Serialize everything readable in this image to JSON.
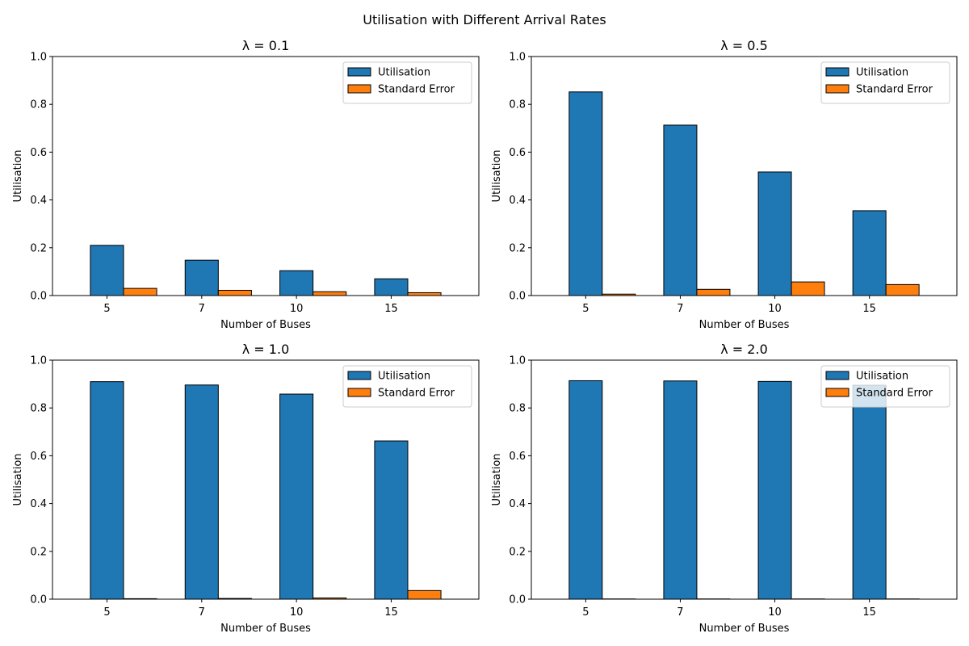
{
  "figure": {
    "suptitle": "Utilisation with Different Arrival Rates"
  },
  "colors": {
    "utilisation": "#1f77b4",
    "standard_error": "#ff7f0e",
    "edge": "#000000"
  },
  "chart_data": [
    {
      "type": "bar",
      "title": "λ = 0.1",
      "xlabel": "Number of Buses",
      "ylabel": "Utilisation",
      "ylim": [
        0,
        1
      ],
      "yticks": [
        "0.0",
        "0.2",
        "0.4",
        "0.6",
        "0.8",
        "1.0"
      ],
      "categories": [
        "5",
        "7",
        "10",
        "15"
      ],
      "legend_position": "upper right",
      "series": [
        {
          "name": "Utilisation",
          "values": [
            0.21,
            0.148,
            0.104,
            0.07
          ]
        },
        {
          "name": "Standard Error",
          "values": [
            0.03,
            0.022,
            0.016,
            0.012
          ]
        }
      ]
    },
    {
      "type": "bar",
      "title": "λ = 0.5",
      "xlabel": "Number of Buses",
      "ylabel": "Utilisation",
      "ylim": [
        0,
        1
      ],
      "yticks": [
        "0.0",
        "0.2",
        "0.4",
        "0.6",
        "0.8",
        "1.0"
      ],
      "categories": [
        "5",
        "7",
        "10",
        "15"
      ],
      "legend_position": "upper right",
      "series": [
        {
          "name": "Utilisation",
          "values": [
            0.852,
            0.713,
            0.517,
            0.355
          ]
        },
        {
          "name": "Standard Error",
          "values": [
            0.006,
            0.026,
            0.057,
            0.046
          ]
        }
      ]
    },
    {
      "type": "bar",
      "title": "λ = 1.0",
      "xlabel": "Number of Buses",
      "ylabel": "Utilisation",
      "ylim": [
        0,
        1
      ],
      "yticks": [
        "0.0",
        "0.2",
        "0.4",
        "0.6",
        "0.8",
        "1.0"
      ],
      "categories": [
        "5",
        "7",
        "10",
        "15"
      ],
      "legend_position": "upper right",
      "series": [
        {
          "name": "Utilisation",
          "values": [
            0.91,
            0.896,
            0.858,
            0.662
          ]
        },
        {
          "name": "Standard Error",
          "values": [
            0.002,
            0.003,
            0.005,
            0.036
          ]
        }
      ]
    },
    {
      "type": "bar",
      "title": "λ = 2.0",
      "xlabel": "Number of Buses",
      "ylabel": "Utilisation",
      "ylim": [
        0,
        1
      ],
      "yticks": [
        "0.0",
        "0.2",
        "0.4",
        "0.6",
        "0.8",
        "1.0"
      ],
      "categories": [
        "5",
        "7",
        "10",
        "15"
      ],
      "legend_position": "upper right",
      "series": [
        {
          "name": "Utilisation",
          "values": [
            0.914,
            0.913,
            0.911,
            0.895
          ]
        },
        {
          "name": "Standard Error",
          "values": [
            0.001,
            0.001,
            0.001,
            0.001
          ]
        }
      ]
    }
  ]
}
